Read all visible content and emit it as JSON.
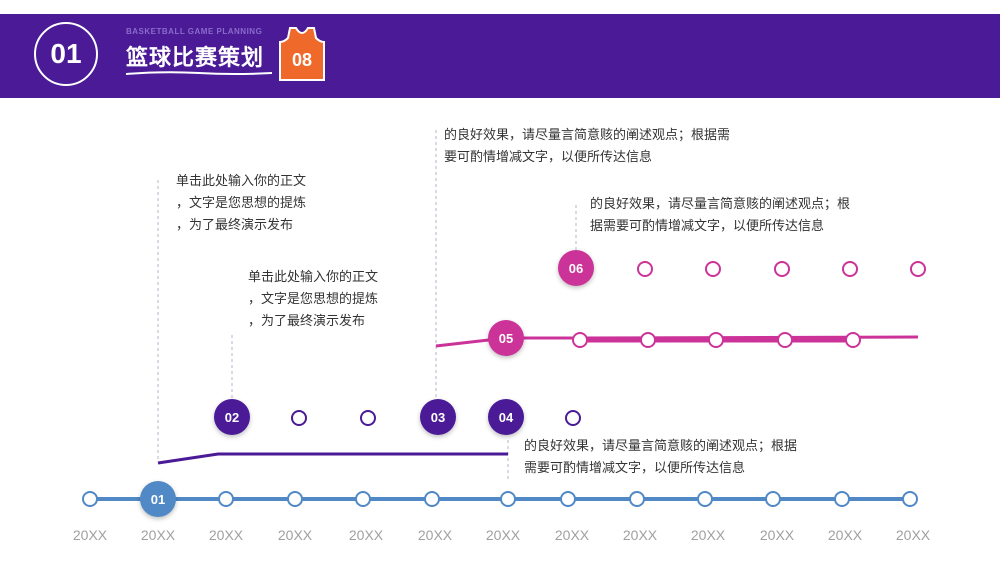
{
  "header": {
    "number": "01",
    "subtitle": "BASKETBALL GAME PLANNING",
    "title": "篮球比赛策划",
    "jersey_number": "08"
  },
  "colors": {
    "header_bg": "#4a1a97",
    "blue": "#5089c6",
    "purple": "#4a1a97",
    "magenta": "#cc3399",
    "jersey": "#ef6a2a"
  },
  "years": [
    "20XX",
    "20XX",
    "20XX",
    "20XX",
    "20XX",
    "20XX",
    "20XX",
    "20XX",
    "20XX",
    "20XX",
    "20XX",
    "20XX",
    "20XX"
  ],
  "nodes": {
    "n01": "01",
    "n02": "02",
    "n03": "03",
    "n04": "04",
    "n05": "05",
    "n06": "06"
  },
  "texts": {
    "t1": [
      "单击此处输入你的正文",
      "，文字是您思想的提炼",
      "，为了最终演示发布"
    ],
    "t2": [
      "单击此处输入你的正文",
      "，文字是您思想的提炼",
      "，为了最终演示发布"
    ],
    "t3": [
      "的良好效果，请尽量言简意赅的阐述观点；根据需",
      "要可酌情增减文字，以便所传达信息"
    ],
    "t4": [
      "的良好效果，请尽量言简意赅的阐述观点；根",
      "据需要可酌情增减文字，以便所传达信息"
    ],
    "t5": [
      "的良好效果，请尽量言简意赅的阐述观点；根据",
      "需要可酌情增减文字，以便所传达信息"
    ]
  }
}
